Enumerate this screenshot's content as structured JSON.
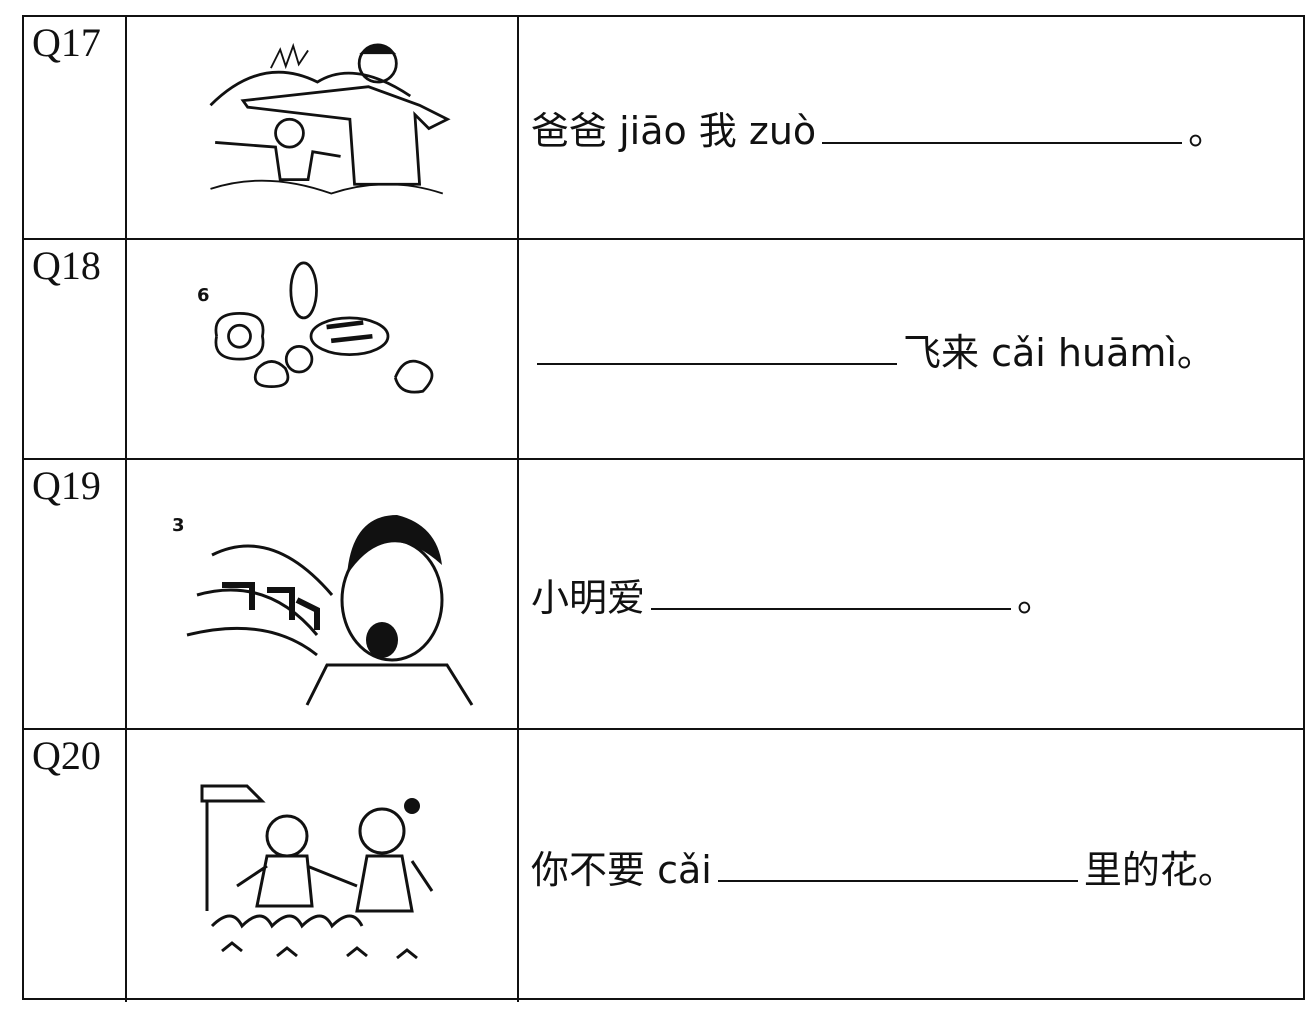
{
  "questions": [
    {
      "number": "Q17",
      "before": "爸爸 jiāo 我 zuò",
      "after": "。"
    },
    {
      "number": "Q18",
      "image_label": "6",
      "after": "飞来 cǎi huāmì。"
    },
    {
      "number": "Q19",
      "image_label": "3",
      "before": "小明爱",
      "after": "。"
    },
    {
      "number": "Q20",
      "before": "你不要 cǎi",
      "after": "里的花。"
    }
  ]
}
